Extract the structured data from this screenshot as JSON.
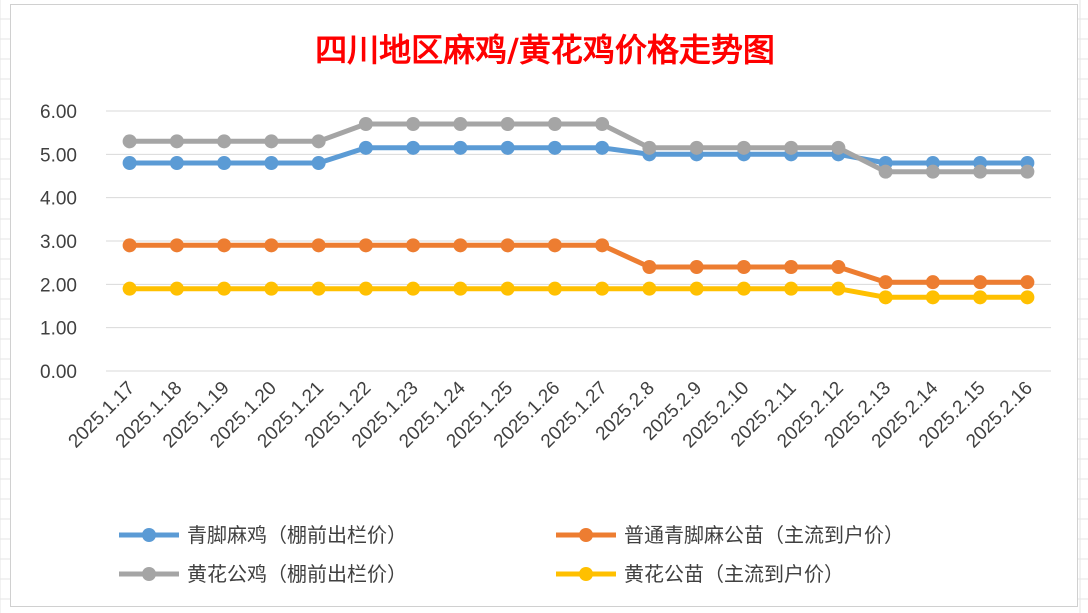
{
  "chart_data": {
    "type": "line",
    "title": "四川地区麻鸡/黄花鸡价格走势图",
    "categories": [
      "2025.1.17",
      "2025.1.18",
      "2025.1.19",
      "2025.1.20",
      "2025.1.21",
      "2025.1.22",
      "2025.1.23",
      "2025.1.24",
      "2025.1.25",
      "2025.1.26",
      "2025.1.27",
      "2025.2.8",
      "2025.2.9",
      "2025.2.10",
      "2025.2.11",
      "2025.2.12",
      "2025.2.13",
      "2025.2.14",
      "2025.2.15",
      "2025.2.16"
    ],
    "ylim": [
      0,
      6
    ],
    "yticks": [
      "0.00",
      "1.00",
      "2.00",
      "3.00",
      "4.00",
      "5.00",
      "6.00"
    ],
    "grid": true,
    "legend_position": "bottom",
    "series": [
      {
        "name": "青脚麻鸡（棚前出栏价）",
        "color": "#5b9bd5",
        "values": [
          4.8,
          4.8,
          4.8,
          4.8,
          4.8,
          5.15,
          5.15,
          5.15,
          5.15,
          5.15,
          5.15,
          5.0,
          5.0,
          5.0,
          5.0,
          5.0,
          4.8,
          4.8,
          4.8,
          4.8
        ]
      },
      {
        "name": "普通青脚麻公苗（主流到户价）",
        "color": "#ed7d31",
        "values": [
          2.9,
          2.9,
          2.9,
          2.9,
          2.9,
          2.9,
          2.9,
          2.9,
          2.9,
          2.9,
          2.9,
          2.4,
          2.4,
          2.4,
          2.4,
          2.4,
          2.05,
          2.05,
          2.05,
          2.05
        ]
      },
      {
        "name": "黄花公鸡（棚前出栏价）",
        "color": "#a5a5a5",
        "values": [
          5.3,
          5.3,
          5.3,
          5.3,
          5.3,
          5.7,
          5.7,
          5.7,
          5.7,
          5.7,
          5.7,
          5.15,
          5.15,
          5.15,
          5.15,
          5.15,
          4.6,
          4.6,
          4.6,
          4.6
        ]
      },
      {
        "name": "黄花公苗（主流到户价）",
        "color": "#ffc000",
        "values": [
          1.9,
          1.9,
          1.9,
          1.9,
          1.9,
          1.9,
          1.9,
          1.9,
          1.9,
          1.9,
          1.9,
          1.9,
          1.9,
          1.9,
          1.9,
          1.9,
          1.7,
          1.7,
          1.7,
          1.7
        ]
      }
    ]
  }
}
